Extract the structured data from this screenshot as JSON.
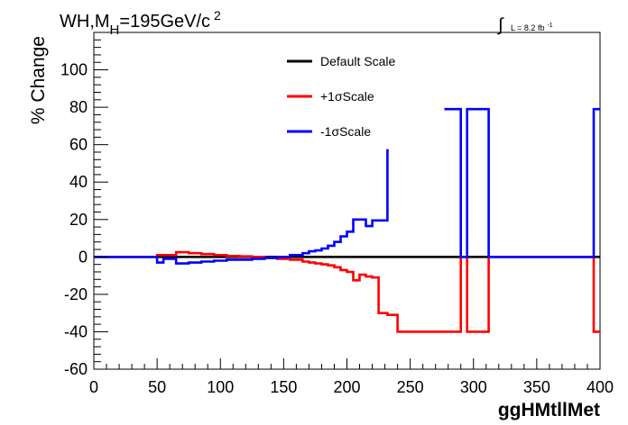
{
  "chart_data": {
    "type": "line",
    "title": "WH,M",
    "title_sub": "H",
    "title_rest": "=195GeV/c",
    "title_sup": "2",
    "lumi_symbol": "∫",
    "lumi_text": "L = 8.2 fb",
    "lumi_sup": "-1",
    "xlabel": "ggHMtllMet",
    "ylabel": "% Change",
    "xlim": [
      0,
      400
    ],
    "ylim": [
      -60,
      120
    ],
    "x_ticks": [
      0,
      50,
      100,
      150,
      200,
      250,
      300,
      350,
      400
    ],
    "y_ticks": [
      -60,
      -40,
      -20,
      0,
      20,
      40,
      60,
      80,
      100
    ],
    "grid": false,
    "legend_position": "top-center",
    "series": [
      {
        "name": "Default Scale",
        "color": "#000000",
        "steps": [
          [
            0,
            400,
            0
          ]
        ]
      },
      {
        "name": "+1σScale",
        "color": "#ff0000",
        "steps": [
          [
            0,
            50,
            0
          ],
          [
            50,
            55,
            1
          ],
          [
            55,
            65,
            1
          ],
          [
            65,
            75,
            2.5
          ],
          [
            75,
            85,
            2
          ],
          [
            85,
            95,
            1.5
          ],
          [
            95,
            105,
            1
          ],
          [
            105,
            115,
            0.5
          ],
          [
            115,
            125,
            0.3
          ],
          [
            125,
            135,
            0
          ],
          [
            135,
            145,
            -0.5
          ],
          [
            145,
            155,
            -1
          ],
          [
            155,
            165,
            -1.5
          ],
          [
            165,
            170,
            -2.5
          ],
          [
            170,
            175,
            -3
          ],
          [
            175,
            180,
            -3.5
          ],
          [
            180,
            185,
            -4
          ],
          [
            185,
            190,
            -4.5
          ],
          [
            190,
            195,
            -5.5
          ],
          [
            195,
            200,
            -7
          ],
          [
            200,
            205,
            -8
          ],
          [
            205,
            210,
            -12.5
          ],
          [
            210,
            215,
            -9.5
          ],
          [
            215,
            220,
            -10.5
          ],
          [
            220,
            225,
            -11
          ],
          [
            225,
            232,
            -30
          ],
          [
            232,
            240,
            -31
          ],
          [
            240,
            250,
            -40
          ],
          [
            250,
            290,
            -40
          ],
          [
            290,
            295,
            0
          ],
          [
            295,
            300,
            -40
          ],
          [
            300,
            312,
            -40
          ],
          [
            312,
            395,
            0
          ],
          [
            395,
            400,
            -40
          ]
        ]
      },
      {
        "name": "-1σScale",
        "color": "#0000ff",
        "steps": [
          [
            0,
            50,
            0
          ],
          [
            50,
            55,
            -3
          ],
          [
            55,
            60,
            -1
          ],
          [
            60,
            65,
            -1
          ],
          [
            65,
            75,
            -3.5
          ],
          [
            75,
            85,
            -3
          ],
          [
            85,
            95,
            -2.5
          ],
          [
            95,
            105,
            -2
          ],
          [
            105,
            115,
            -1.5
          ],
          [
            115,
            125,
            -1.5
          ],
          [
            125,
            135,
            -1
          ],
          [
            135,
            145,
            -0.5
          ],
          [
            145,
            155,
            0
          ],
          [
            155,
            165,
            1
          ],
          [
            165,
            170,
            2
          ],
          [
            170,
            175,
            3
          ],
          [
            175,
            180,
            3.5
          ],
          [
            180,
            185,
            4.5
          ],
          [
            185,
            190,
            6
          ],
          [
            190,
            195,
            8
          ],
          [
            195,
            200,
            11
          ],
          [
            200,
            205,
            13.5
          ],
          [
            205,
            210,
            20
          ],
          [
            210,
            215,
            20
          ],
          [
            215,
            220,
            16.5
          ],
          [
            220,
            225,
            19.5
          ],
          [
            225,
            232,
            19.5
          ],
          [
            232,
            233,
            57
          ],
          [
            277,
            290,
            79
          ],
          [
            290,
            295,
            0
          ],
          [
            295,
            312,
            79
          ],
          [
            312,
            395,
            0
          ],
          [
            395,
            400,
            79
          ]
        ]
      }
    ]
  }
}
